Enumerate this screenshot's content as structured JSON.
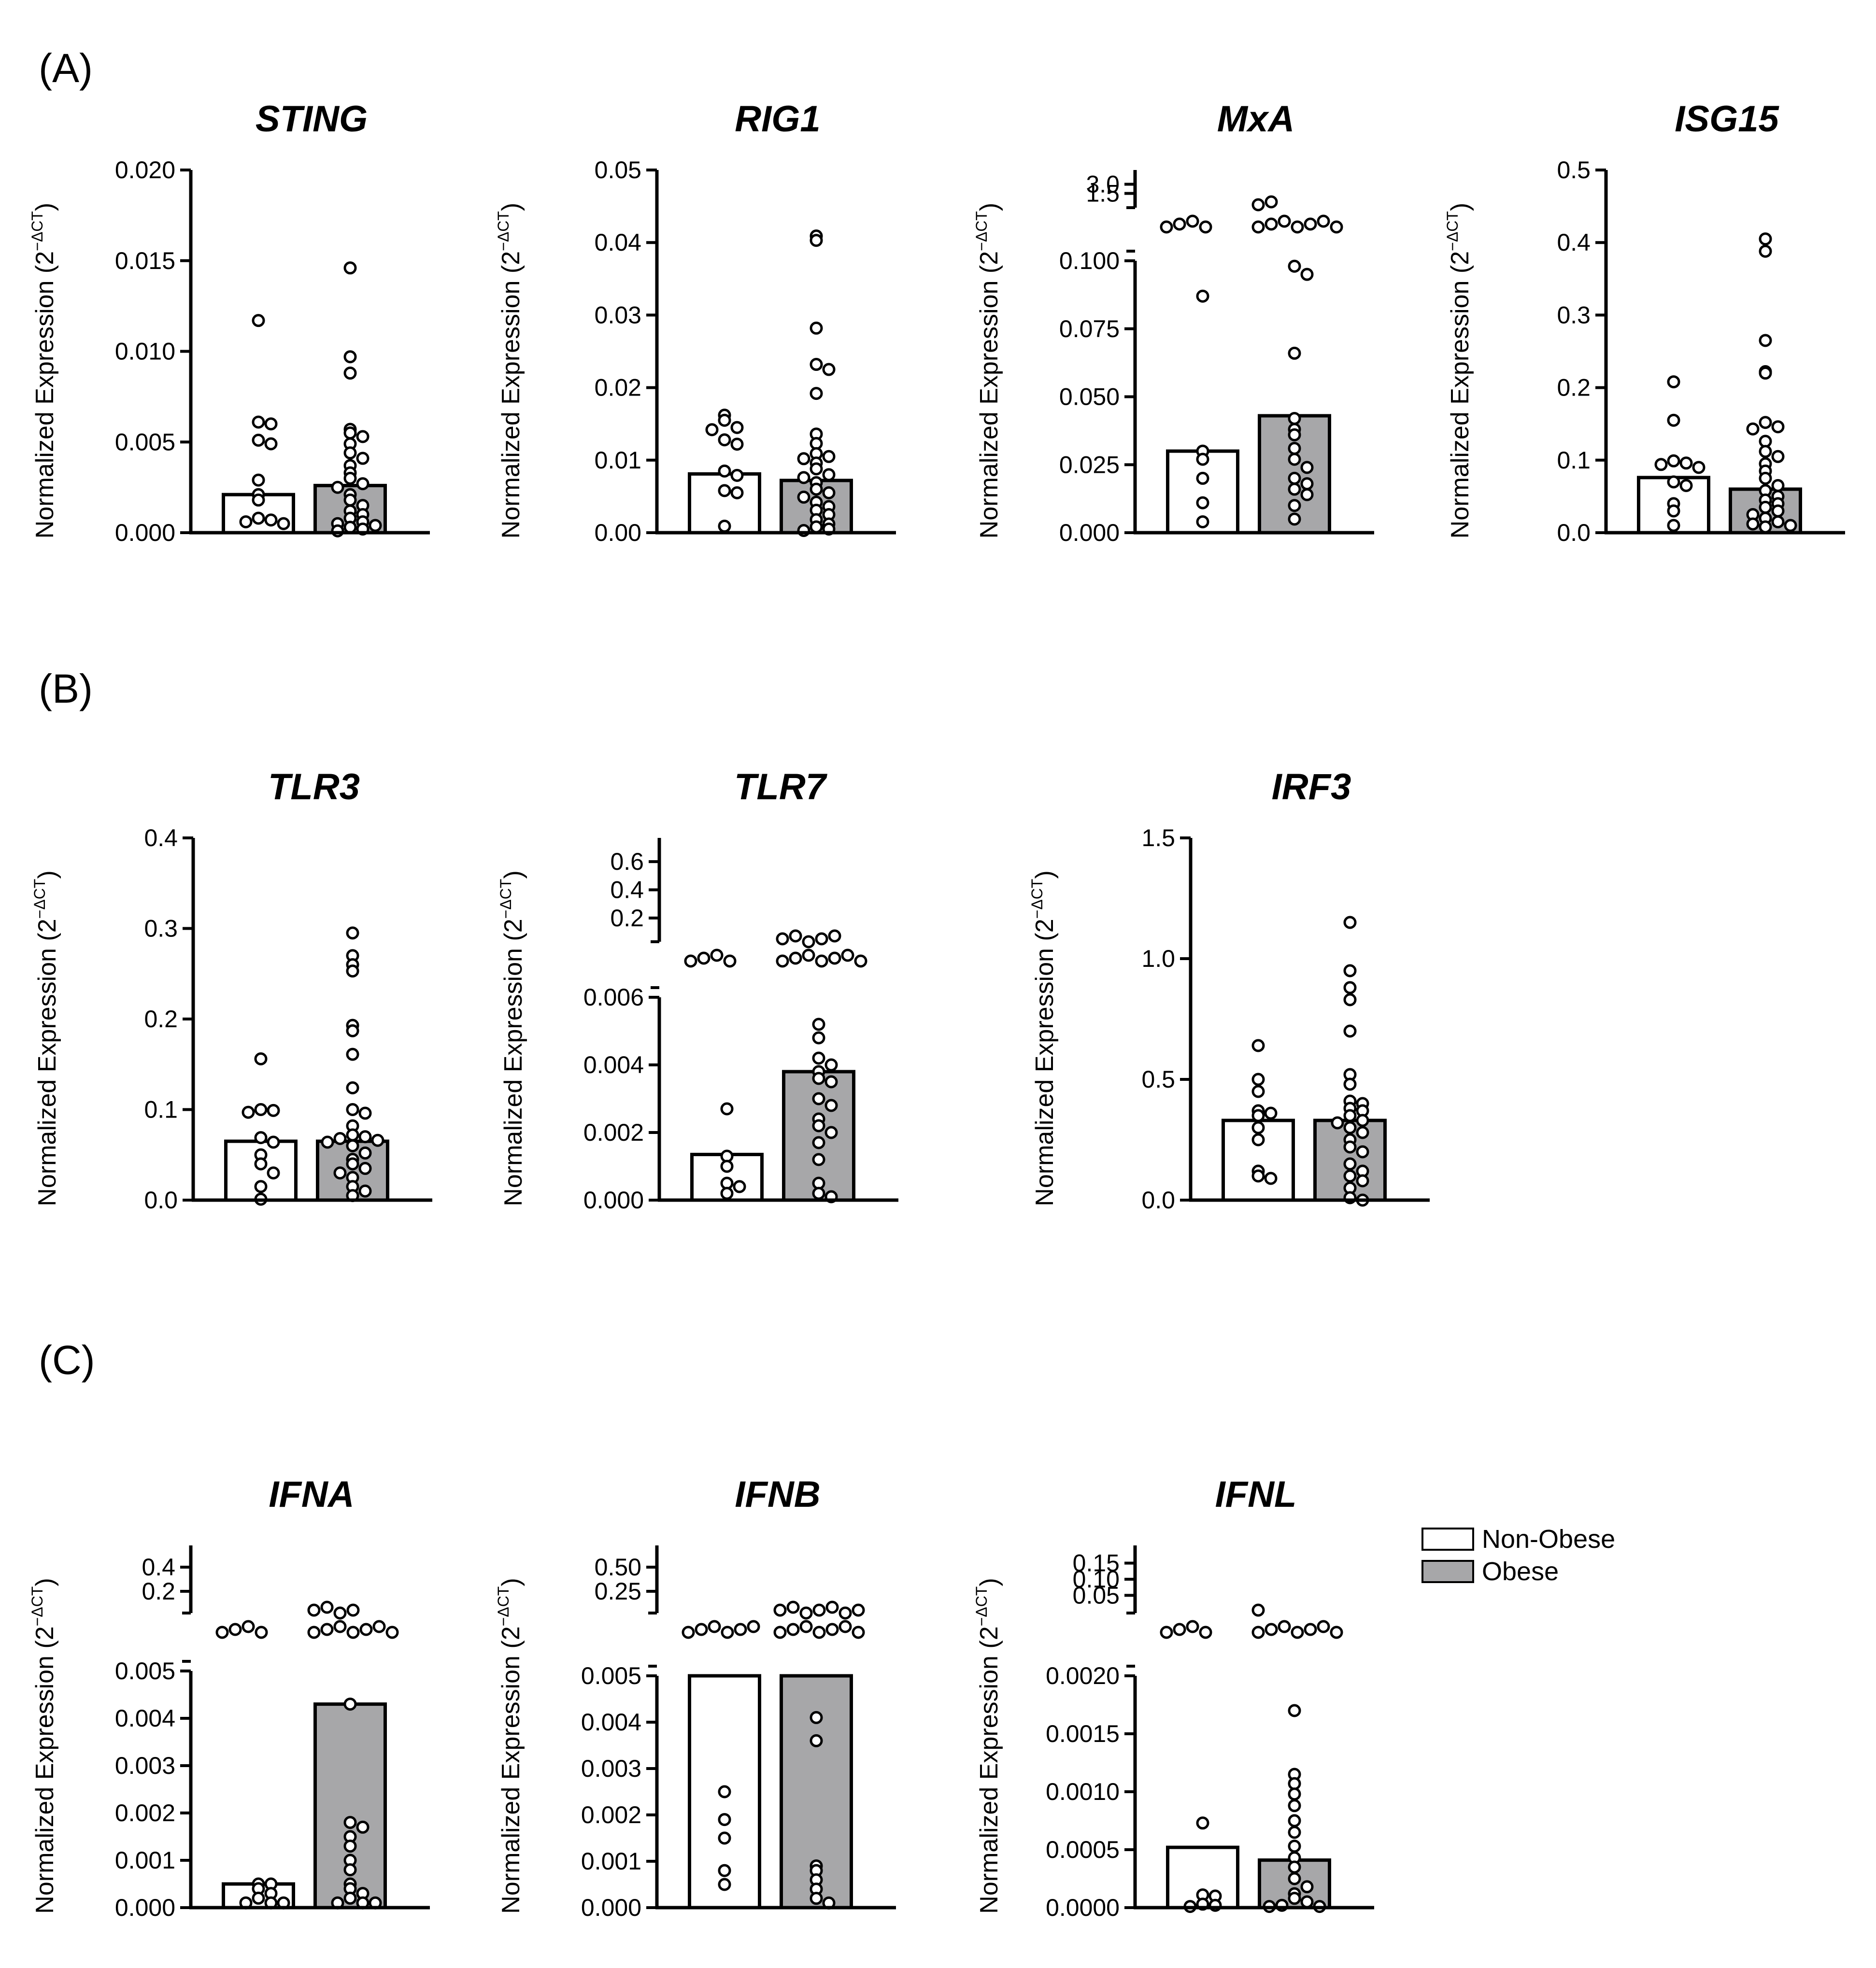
{
  "figure": {
    "colors": {
      "non_obese": "#ffffff",
      "obese": "#a7a7a9",
      "stroke": "#000000"
    },
    "panel_labels": [
      "(A)",
      "(B)",
      "(C)"
    ],
    "ylabel_main": "Normalized Expression (2",
    "ylabel_sup": "−ΔCT",
    "ylabel_close": ")",
    "legend": {
      "non_obese": "Non-Obese",
      "obese": "Obese"
    }
  },
  "chart_data": [
    {
      "type": "bar",
      "title": "STING",
      "panel": "A",
      "categories": [
        "Non-Obese",
        "Obese"
      ],
      "ylim": [
        0,
        0.02
      ],
      "ticks": [
        {
          "v": 0,
          "label": "0.000"
        },
        {
          "v": 0.005,
          "label": "0.005"
        },
        {
          "v": 0.01,
          "label": "0.010"
        },
        {
          "v": 0.015,
          "label": "0.015"
        },
        {
          "v": 0.02,
          "label": "0.020"
        }
      ],
      "series": [
        {
          "name": "Non-Obese",
          "mean": 0.0021,
          "points": [
            0.0117,
            0.0061,
            0.006,
            0.0051,
            0.0049,
            0.0029,
            0.0021,
            0.0018,
            0.0008,
            0.0007,
            0.0006,
            0.0005
          ]
        },
        {
          "name": "Obese",
          "mean": 0.0026,
          "points": [
            0.0146,
            0.0097,
            0.0088,
            0.0057,
            0.0055,
            0.0053,
            0.0049,
            0.0044,
            0.0041,
            0.0037,
            0.0033,
            0.003,
            0.0027,
            0.0025,
            0.0021,
            0.0018,
            0.0015,
            0.0012,
            0.001,
            0.0008,
            0.0006,
            0.0005,
            0.0004,
            0.0003,
            0.0002,
            0.0001
          ]
        }
      ]
    },
    {
      "type": "bar",
      "title": "RIG1",
      "panel": "A",
      "categories": [
        "Non-Obese",
        "Obese"
      ],
      "ylim": [
        0,
        0.05
      ],
      "ticks": [
        {
          "v": 0,
          "label": "0.00"
        },
        {
          "v": 0.01,
          "label": "0.01"
        },
        {
          "v": 0.02,
          "label": "0.02"
        },
        {
          "v": 0.03,
          "label": "0.03"
        },
        {
          "v": 0.04,
          "label": "0.04"
        },
        {
          "v": 0.05,
          "label": "0.05"
        }
      ],
      "series": [
        {
          "name": "Non-Obese",
          "mean": 0.0081,
          "points": [
            0.0162,
            0.0155,
            0.0145,
            0.0142,
            0.0128,
            0.0122,
            0.0085,
            0.0079,
            0.0058,
            0.0055,
            0.0009
          ]
        },
        {
          "name": "Obese",
          "mean": 0.0072,
          "points": [
            0.0409,
            0.0403,
            0.0282,
            0.0232,
            0.0225,
            0.0192,
            0.0136,
            0.0123,
            0.0109,
            0.0105,
            0.0102,
            0.0096,
            0.0088,
            0.008,
            0.0076,
            0.0069,
            0.006,
            0.0055,
            0.0049,
            0.0042,
            0.0036,
            0.0031,
            0.0025,
            0.0018,
            0.0012,
            0.0008,
            0.0005,
            0.0003
          ]
        }
      ]
    },
    {
      "type": "bar",
      "title": "MxA",
      "panel": "A",
      "categories": [
        "Non-Obese",
        "Obese"
      ],
      "ylim": [
        0,
        0.1
      ],
      "broken": true,
      "ticks": [
        {
          "v": 0,
          "label": "0.000"
        },
        {
          "v": 0.025,
          "label": "0.025"
        },
        {
          "v": 0.05,
          "label": "0.050"
        },
        {
          "v": 0.075,
          "label": "0.075"
        },
        {
          "v": 0.1,
          "label": "0.100"
        }
      ],
      "upper_ticks": [
        {
          "label": "1.5"
        },
        {
          "label": "3.0"
        }
      ],
      "series": [
        {
          "name": "Non-Obese",
          "mean": 0.03,
          "upper_count": 4,
          "points": [
            0.087,
            0.03,
            0.027,
            0.02,
            0.011,
            0.004
          ]
        },
        {
          "name": "Obese",
          "mean": 0.043,
          "upper_count": 9,
          "points": [
            0.098,
            0.095,
            0.066,
            0.042,
            0.038,
            0.036,
            0.031,
            0.027,
            0.024,
            0.02,
            0.018,
            0.016,
            0.014,
            0.01,
            0.005
          ]
        }
      ]
    },
    {
      "type": "bar",
      "title": "ISG15",
      "panel": "A",
      "categories": [
        "Non-Obese",
        "Obese"
      ],
      "ylim": [
        0,
        0.5
      ],
      "ticks": [
        {
          "v": 0,
          "label": "0.0"
        },
        {
          "v": 0.1,
          "label": "0.1"
        },
        {
          "v": 0.2,
          "label": "0.2"
        },
        {
          "v": 0.3,
          "label": "0.3"
        },
        {
          "v": 0.4,
          "label": "0.4"
        },
        {
          "v": 0.5,
          "label": "0.5"
        }
      ],
      "series": [
        {
          "name": "Non-Obese",
          "mean": 0.076,
          "points": [
            0.208,
            0.155,
            0.099,
            0.096,
            0.094,
            0.09,
            0.07,
            0.065,
            0.04,
            0.03,
            0.01
          ]
        },
        {
          "name": "Obese",
          "mean": 0.06,
          "points": [
            0.405,
            0.388,
            0.265,
            0.222,
            0.22,
            0.152,
            0.146,
            0.143,
            0.126,
            0.112,
            0.105,
            0.095,
            0.085,
            0.075,
            0.065,
            0.058,
            0.05,
            0.045,
            0.04,
            0.035,
            0.03,
            0.025,
            0.02,
            0.015,
            0.012,
            0.01,
            0.008
          ]
        }
      ]
    },
    {
      "type": "bar",
      "title": "TLR3",
      "panel": "B",
      "categories": [
        "Non-Obese",
        "Obese"
      ],
      "ylim": [
        0,
        0.4
      ],
      "ticks": [
        {
          "v": 0,
          "label": "0.0"
        },
        {
          "v": 0.1,
          "label": "0.1"
        },
        {
          "v": 0.2,
          "label": "0.2"
        },
        {
          "v": 0.3,
          "label": "0.3"
        },
        {
          "v": 0.4,
          "label": "0.4"
        }
      ],
      "series": [
        {
          "name": "Non-Obese",
          "mean": 0.065,
          "points": [
            0.156,
            0.1,
            0.099,
            0.097,
            0.069,
            0.064,
            0.05,
            0.04,
            0.03,
            0.015,
            0.001
          ]
        },
        {
          "name": "Obese",
          "mean": 0.065,
          "points": [
            0.295,
            0.27,
            0.26,
            0.253,
            0.193,
            0.187,
            0.161,
            0.124,
            0.1,
            0.096,
            0.082,
            0.072,
            0.07,
            0.068,
            0.066,
            0.064,
            0.06,
            0.052,
            0.045,
            0.04,
            0.035,
            0.03,
            0.025,
            0.015,
            0.01,
            0.005
          ]
        }
      ]
    },
    {
      "type": "bar",
      "title": "TLR7",
      "panel": "B",
      "categories": [
        "Non-Obese",
        "Obese"
      ],
      "ylim": [
        0,
        0.006
      ],
      "broken": true,
      "ticks": [
        {
          "v": 0,
          "label": "0.000"
        },
        {
          "v": 0.002,
          "label": "0.002"
        },
        {
          "v": 0.004,
          "label": "0.004"
        },
        {
          "v": 0.006,
          "label": "0.006"
        }
      ],
      "upper_ticks": [
        {
          "label": "0.2"
        },
        {
          "label": "0.4"
        },
        {
          "label": "0.6"
        }
      ],
      "series": [
        {
          "name": "Non-Obese",
          "mean": 0.00135,
          "upper_count": 4,
          "points": [
            0.0027,
            0.0013,
            0.001,
            0.0005,
            0.0004,
            0.0002
          ]
        },
        {
          "name": "Obese",
          "mean": 0.0038,
          "upper_count": 12,
          "points": [
            0.0052,
            0.0048,
            0.0042,
            0.004,
            0.0038,
            0.0036,
            0.0035,
            0.003,
            0.0028,
            0.0024,
            0.0022,
            0.002,
            0.0017,
            0.0012,
            0.0005,
            0.0002,
            0.0001
          ]
        }
      ]
    },
    {
      "type": "bar",
      "title": "IRF3",
      "panel": "B",
      "categories": [
        "Non-Obese",
        "Obese"
      ],
      "ylim": [
        0,
        1.5
      ],
      "ticks": [
        {
          "v": 0,
          "label": "0.0"
        },
        {
          "v": 0.5,
          "label": "0.5"
        },
        {
          "v": 1.0,
          "label": "1.0"
        },
        {
          "v": 1.5,
          "label": "1.5"
        }
      ],
      "series": [
        {
          "name": "Non-Obese",
          "mean": 0.33,
          "points": [
            0.64,
            0.5,
            0.45,
            0.37,
            0.36,
            0.35,
            0.3,
            0.25,
            0.12,
            0.1,
            0.09
          ]
        },
        {
          "name": "Obese",
          "mean": 0.33,
          "points": [
            1.15,
            0.95,
            0.88,
            0.83,
            0.7,
            0.52,
            0.48,
            0.41,
            0.4,
            0.38,
            0.37,
            0.35,
            0.33,
            0.32,
            0.3,
            0.28,
            0.25,
            0.22,
            0.2,
            0.15,
            0.12,
            0.1,
            0.08,
            0.05,
            0.01,
            0.0
          ]
        }
      ]
    },
    {
      "type": "bar",
      "title": "IFNA",
      "panel": "C",
      "categories": [
        "Non-Obese",
        "Obese"
      ],
      "ylim": [
        0,
        0.005
      ],
      "broken": true,
      "ticks": [
        {
          "v": 0,
          "label": "0.000"
        },
        {
          "v": 0.001,
          "label": "0.001"
        },
        {
          "v": 0.002,
          "label": "0.002"
        },
        {
          "v": 0.003,
          "label": "0.003"
        },
        {
          "v": 0.004,
          "label": "0.004"
        },
        {
          "v": 0.005,
          "label": "0.005"
        }
      ],
      "upper_ticks": [
        {
          "label": "0.2"
        },
        {
          "label": "0.4"
        }
      ],
      "series": [
        {
          "name": "Non-Obese",
          "mean": 0.0005,
          "upper_count": 4,
          "points": [
            0.0005,
            0.0005,
            0.0004,
            0.0003,
            0.0002,
            0.0001,
            0.0001,
            0.0001
          ]
        },
        {
          "name": "Obese",
          "mean": 0.0043,
          "upper_count": 11,
          "points": [
            0.0043,
            0.0018,
            0.0017,
            0.0015,
            0.0013,
            0.001,
            0.0008,
            0.0005,
            0.0004,
            0.0003,
            0.0002,
            0.0001,
            0.0001,
            0.0001
          ]
        }
      ]
    },
    {
      "type": "bar",
      "title": "IFNB",
      "panel": "C",
      "categories": [
        "Non-Obese",
        "Obese"
      ],
      "ylim": [
        0,
        0.005
      ],
      "broken": true,
      "ticks": [
        {
          "v": 0,
          "label": "0.000"
        },
        {
          "v": 0.001,
          "label": "0.001"
        },
        {
          "v": 0.002,
          "label": "0.002"
        },
        {
          "v": 0.003,
          "label": "0.003"
        },
        {
          "v": 0.004,
          "label": "0.004"
        },
        {
          "v": 0.005,
          "label": "0.005"
        }
      ],
      "upper_ticks": [
        {
          "label": "0.25"
        },
        {
          "label": "0.50"
        }
      ],
      "series": [
        {
          "name": "Non-Obese",
          "mean": 0.005,
          "upper_count": 6,
          "points": [
            0.0025,
            0.0019,
            0.0015,
            0.0008,
            0.0005
          ]
        },
        {
          "name": "Obese",
          "mean": 0.005,
          "upper_count": 14,
          "points": [
            0.0041,
            0.0036,
            0.0009,
            0.0008,
            0.0006,
            0.0004,
            0.0002,
            0.0001
          ]
        }
      ]
    },
    {
      "type": "bar",
      "title": "IFNL",
      "panel": "C",
      "categories": [
        "Non-Obese",
        "Obese"
      ],
      "ylim": [
        0,
        0.002
      ],
      "broken": true,
      "ticks": [
        {
          "v": 0,
          "label": "0.0000"
        },
        {
          "v": 0.0005,
          "label": "0.0005"
        },
        {
          "v": 0.001,
          "label": "0.0010"
        },
        {
          "v": 0.0015,
          "label": "0.0015"
        },
        {
          "v": 0.002,
          "label": "0.0020"
        }
      ],
      "upper_ticks": [
        {
          "label": "0.05"
        },
        {
          "label": "0.10"
        },
        {
          "label": "0.15"
        }
      ],
      "series": [
        {
          "name": "Non-Obese",
          "mean": 0.00052,
          "upper_count": 4,
          "points": [
            0.00073,
            0.00011,
            0.0001,
            3e-05,
            2e-05,
            1e-05
          ]
        },
        {
          "name": "Obese",
          "mean": 0.00041,
          "upper_count": 8,
          "points": [
            0.0017,
            0.00115,
            0.00107,
            0.00098,
            0.00088,
            0.00075,
            0.00065,
            0.00053,
            0.00043,
            0.00035,
            0.00025,
            0.00018,
            0.00012,
            8e-05,
            5e-05,
            2e-05,
            1e-05,
            1e-05
          ]
        }
      ]
    }
  ]
}
